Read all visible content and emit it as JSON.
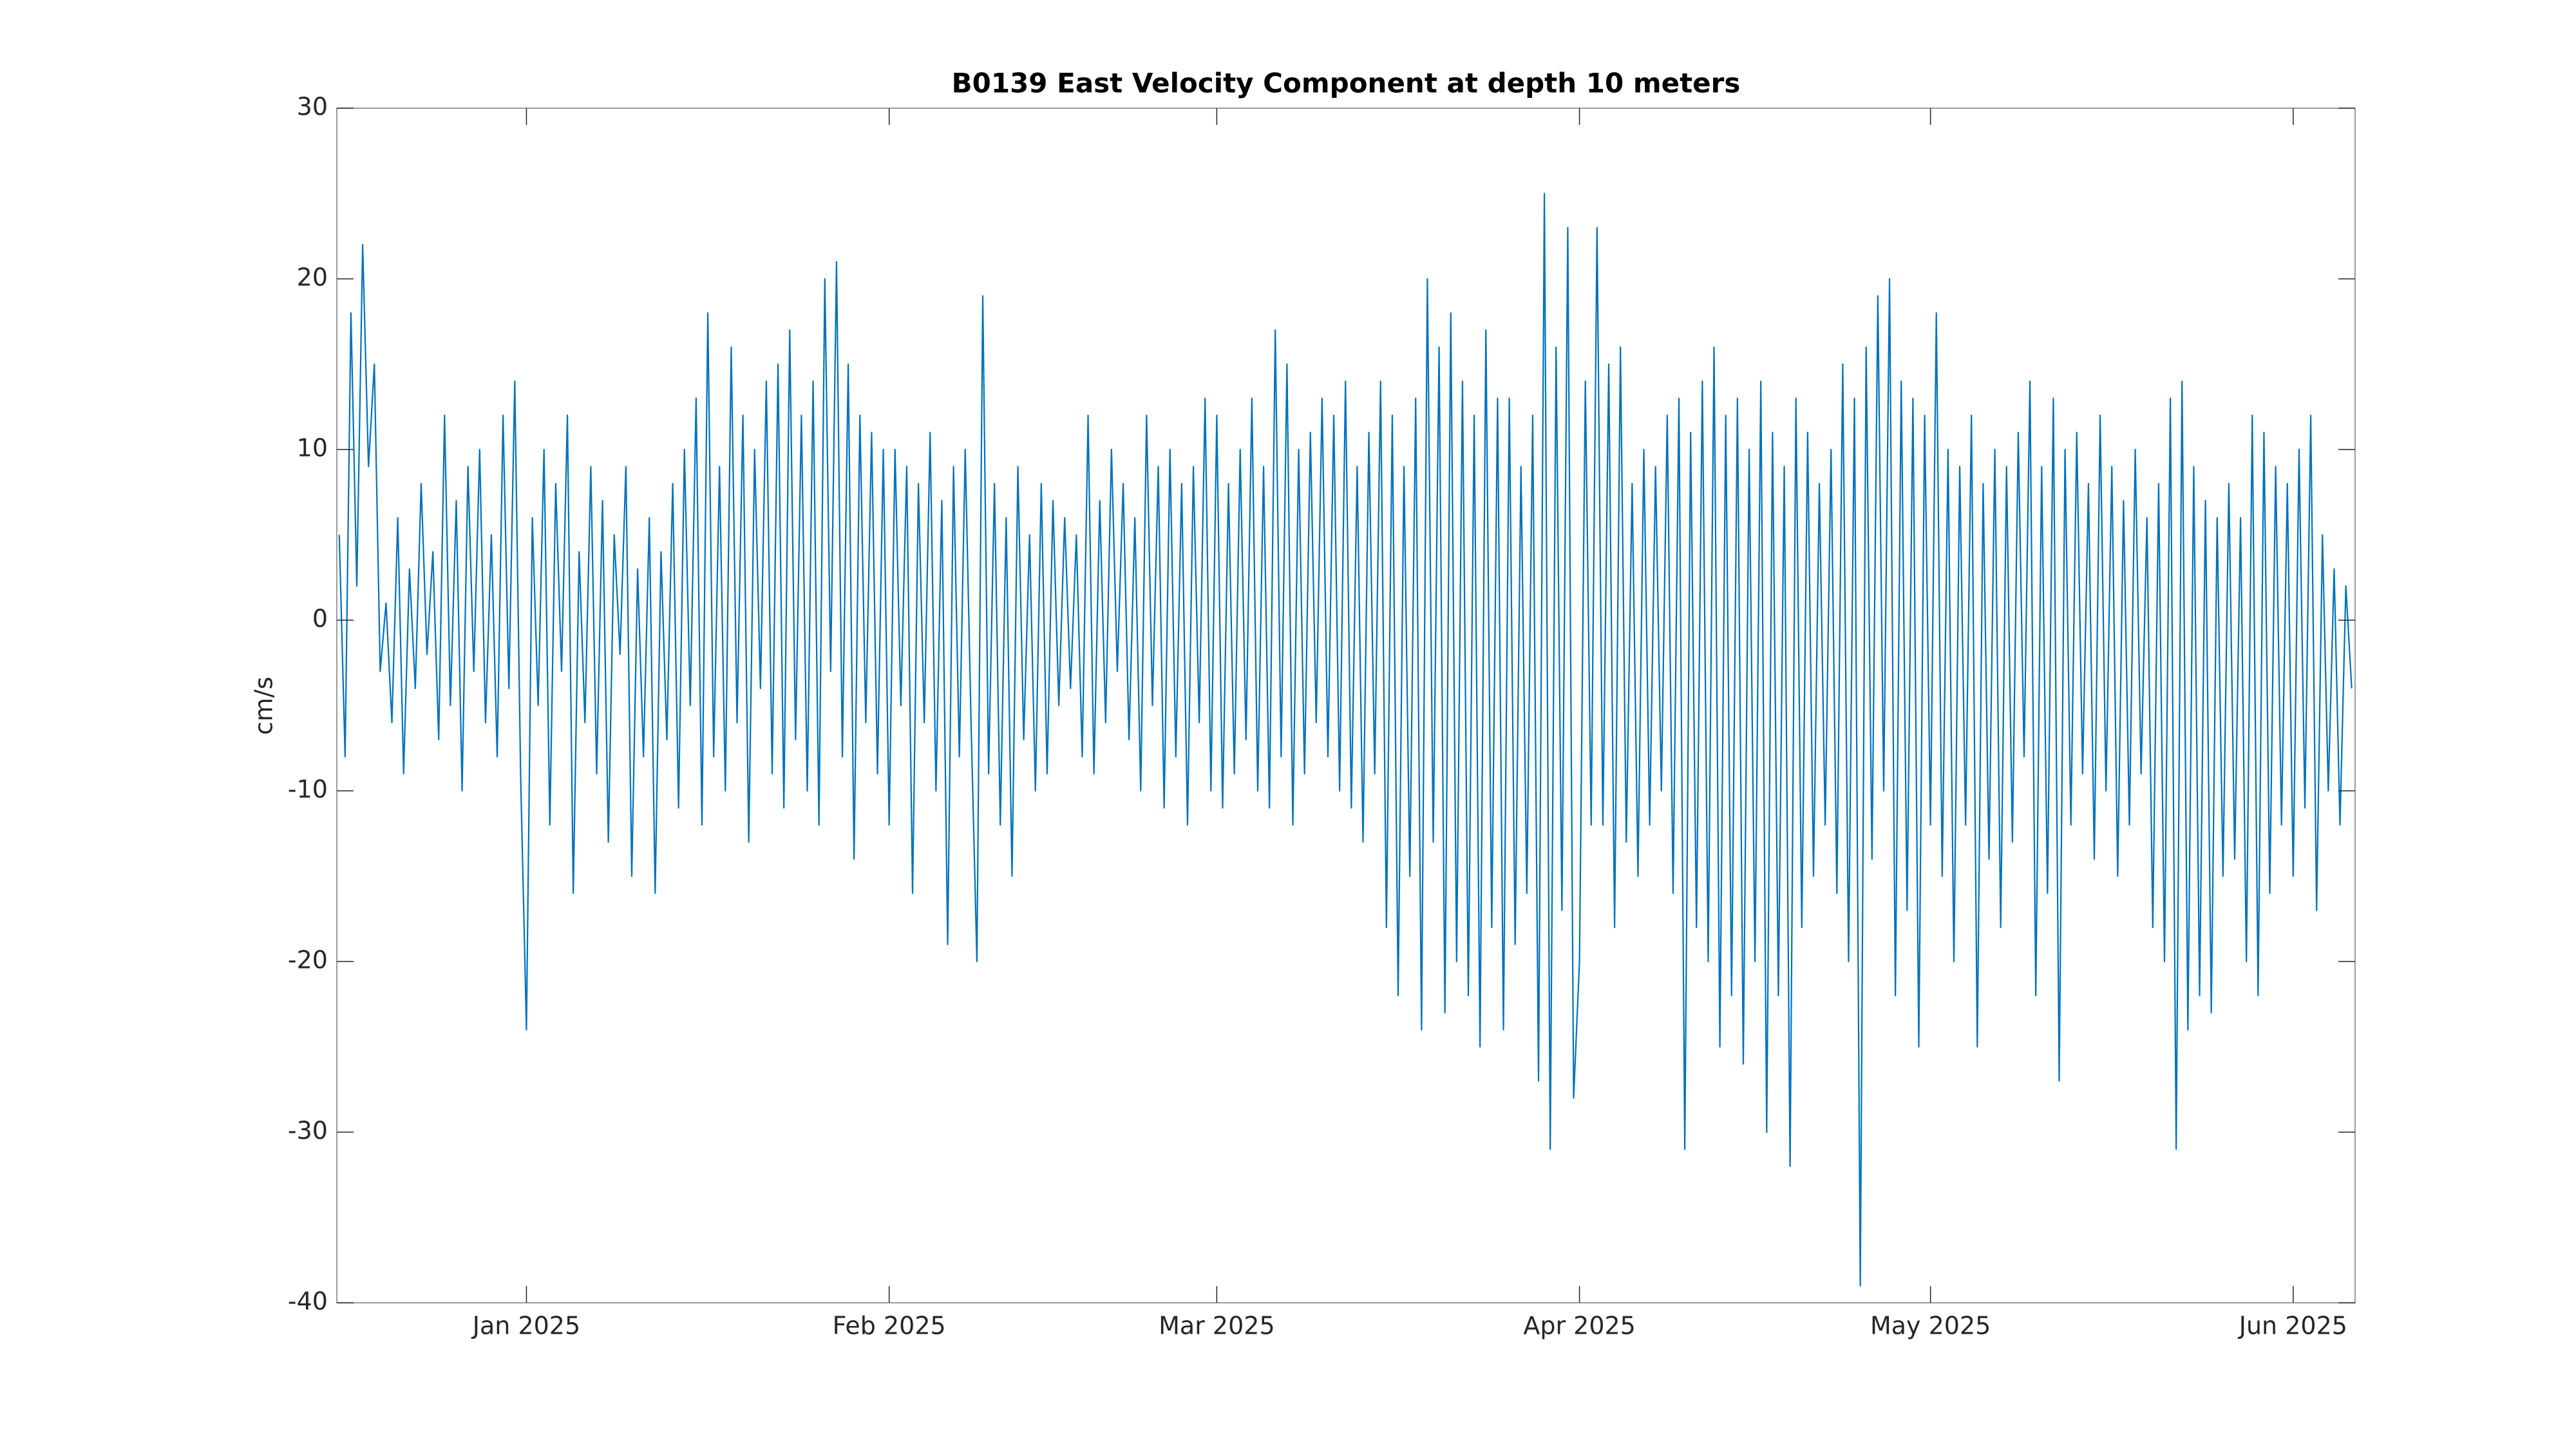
{
  "chart_data": {
    "type": "line",
    "title": "B0139 East Velocity Component at depth 10 meters",
    "y_label": "cm/s",
    "color": "#0072bd",
    "ylim": [
      -40,
      30
    ],
    "yticks": [
      -40,
      -30,
      -20,
      -10,
      0,
      10,
      20,
      30
    ],
    "xlim": [
      "2024-12-15T19:00",
      "2025-06-06T07:00"
    ],
    "xticks": [
      {
        "value": "2025-01-01T00:00",
        "label": "Jan 2025"
      },
      {
        "value": "2025-02-01T00:00",
        "label": "Feb 2025"
      },
      {
        "value": "2025-03-01T00:00",
        "label": "Mar 2025"
      },
      {
        "value": "2025-04-01T00:00",
        "label": "Apr 2025"
      },
      {
        "value": "2025-05-01T00:00",
        "label": "May 2025"
      },
      {
        "value": "2025-06-01T00:00",
        "label": "Jun 2025"
      }
    ],
    "x": [
      "2024-12-16T00:00",
      "2024-12-16T12:00",
      "2024-12-17T00:00",
      "2024-12-17T12:00",
      "2024-12-18T00:00",
      "2024-12-18T12:00",
      "2024-12-19T00:00",
      "2024-12-19T12:00",
      "2024-12-20T00:00",
      "2024-12-20T12:00",
      "2024-12-21T00:00",
      "2024-12-21T12:00",
      "2024-12-22T00:00",
      "2024-12-22T12:00",
      "2024-12-23T00:00",
      "2024-12-23T12:00",
      "2024-12-24T00:00",
      "2024-12-24T12:00",
      "2024-12-25T00:00",
      "2024-12-25T12:00",
      "2024-12-26T00:00",
      "2024-12-26T12:00",
      "2024-12-27T00:00",
      "2024-12-27T12:00",
      "2024-12-28T00:00",
      "2024-12-28T12:00",
      "2024-12-29T00:00",
      "2024-12-29T12:00",
      "2024-12-30T00:00",
      "2024-12-30T12:00",
      "2024-12-31T00:00",
      "2024-12-31T12:00",
      "2025-01-01T00:00",
      "2025-01-01T12:00",
      "2025-01-02T00:00",
      "2025-01-02T12:00",
      "2025-01-03T00:00",
      "2025-01-03T12:00",
      "2025-01-04T00:00",
      "2025-01-04T12:00",
      "2025-01-05T00:00",
      "2025-01-05T12:00",
      "2025-01-06T00:00",
      "2025-01-06T12:00",
      "2025-01-07T00:00",
      "2025-01-07T12:00",
      "2025-01-08T00:00",
      "2025-01-08T12:00",
      "2025-01-09T00:00",
      "2025-01-09T12:00",
      "2025-01-10T00:00",
      "2025-01-10T12:00",
      "2025-01-11T00:00",
      "2025-01-11T12:00",
      "2025-01-12T00:00",
      "2025-01-12T12:00",
      "2025-01-13T00:00",
      "2025-01-13T12:00",
      "2025-01-14T00:00",
      "2025-01-14T12:00",
      "2025-01-15T00:00",
      "2025-01-15T12:00",
      "2025-01-16T00:00",
      "2025-01-16T12:00",
      "2025-01-17T00:00",
      "2025-01-17T12:00",
      "2025-01-18T00:00",
      "2025-01-18T12:00",
      "2025-01-19T00:00",
      "2025-01-19T12:00",
      "2025-01-20T00:00",
      "2025-01-20T12:00",
      "2025-01-21T00:00",
      "2025-01-21T12:00",
      "2025-01-22T00:00",
      "2025-01-22T12:00",
      "2025-01-23T00:00",
      "2025-01-23T12:00",
      "2025-01-24T00:00",
      "2025-01-24T12:00",
      "2025-01-25T00:00",
      "2025-01-25T12:00",
      "2025-01-26T00:00",
      "2025-01-26T12:00",
      "2025-01-27T00:00",
      "2025-01-27T12:00",
      "2025-01-28T00:00",
      "2025-01-28T12:00",
      "2025-01-29T00:00",
      "2025-01-29T12:00",
      "2025-01-30T00:00",
      "2025-01-30T12:00",
      "2025-01-31T00:00",
      "2025-01-31T12:00",
      "2025-02-01T00:00",
      "2025-02-01T12:00",
      "2025-02-02T00:00",
      "2025-02-02T12:00",
      "2025-02-03T00:00",
      "2025-02-03T12:00",
      "2025-02-04T00:00",
      "2025-02-04T12:00",
      "2025-02-05T00:00",
      "2025-02-05T12:00",
      "2025-02-06T00:00",
      "2025-02-06T12:00",
      "2025-02-07T00:00",
      "2025-02-07T12:00",
      "2025-02-08T00:00",
      "2025-02-08T12:00",
      "2025-02-09T00:00",
      "2025-02-09T12:00",
      "2025-02-10T00:00",
      "2025-02-10T12:00",
      "2025-02-11T00:00",
      "2025-02-11T12:00",
      "2025-02-12T00:00",
      "2025-02-12T12:00",
      "2025-02-13T00:00",
      "2025-02-13T12:00",
      "2025-02-14T00:00",
      "2025-02-14T12:00",
      "2025-02-15T00:00",
      "2025-02-15T12:00",
      "2025-02-16T00:00",
      "2025-02-16T12:00",
      "2025-02-17T00:00",
      "2025-02-17T12:00",
      "2025-02-18T00:00",
      "2025-02-18T12:00",
      "2025-02-19T00:00",
      "2025-02-19T12:00",
      "2025-02-20T00:00",
      "2025-02-20T12:00",
      "2025-02-21T00:00",
      "2025-02-21T12:00",
      "2025-02-22T00:00",
      "2025-02-22T12:00",
      "2025-02-23T00:00",
      "2025-02-23T12:00",
      "2025-02-24T00:00",
      "2025-02-24T12:00",
      "2025-02-25T00:00",
      "2025-02-25T12:00",
      "2025-02-26T00:00",
      "2025-02-26T12:00",
      "2025-02-27T00:00",
      "2025-02-27T12:00",
      "2025-02-28T00:00",
      "2025-02-28T12:00",
      "2025-03-01T00:00",
      "2025-03-01T12:00",
      "2025-03-02T00:00",
      "2025-03-02T12:00",
      "2025-03-03T00:00",
      "2025-03-03T12:00",
      "2025-03-04T00:00",
      "2025-03-04T12:00",
      "2025-03-05T00:00",
      "2025-03-05T12:00",
      "2025-03-06T00:00",
      "2025-03-06T12:00",
      "2025-03-07T00:00",
      "2025-03-07T12:00",
      "2025-03-08T00:00",
      "2025-03-08T12:00",
      "2025-03-09T00:00",
      "2025-03-09T12:00",
      "2025-03-10T00:00",
      "2025-03-10T12:00",
      "2025-03-11T00:00",
      "2025-03-11T12:00",
      "2025-03-12T00:00",
      "2025-03-12T12:00",
      "2025-03-13T00:00",
      "2025-03-13T12:00",
      "2025-03-14T00:00",
      "2025-03-14T12:00",
      "2025-03-15T00:00",
      "2025-03-15T12:00",
      "2025-03-16T00:00",
      "2025-03-16T12:00",
      "2025-03-17T00:00",
      "2025-03-17T12:00",
      "2025-03-18T00:00",
      "2025-03-18T12:00",
      "2025-03-19T00:00",
      "2025-03-19T12:00",
      "2025-03-20T00:00",
      "2025-03-20T12:00",
      "2025-03-21T00:00",
      "2025-03-21T12:00",
      "2025-03-22T00:00",
      "2025-03-22T12:00",
      "2025-03-23T00:00",
      "2025-03-23T12:00",
      "2025-03-24T00:00",
      "2025-03-24T12:00",
      "2025-03-25T00:00",
      "2025-03-25T12:00",
      "2025-03-26T00:00",
      "2025-03-26T12:00",
      "2025-03-27T00:00",
      "2025-03-27T12:00",
      "2025-03-28T00:00",
      "2025-03-28T12:00",
      "2025-03-29T00:00",
      "2025-03-29T12:00",
      "2025-03-30T00:00",
      "2025-03-30T12:00",
      "2025-03-31T00:00",
      "2025-03-31T12:00",
      "2025-04-01T00:00",
      "2025-04-01T12:00",
      "2025-04-02T00:00",
      "2025-04-02T12:00",
      "2025-04-03T00:00",
      "2025-04-03T12:00",
      "2025-04-04T00:00",
      "2025-04-04T12:00",
      "2025-04-05T00:00",
      "2025-04-05T12:00",
      "2025-04-06T00:00",
      "2025-04-06T12:00",
      "2025-04-07T00:00",
      "2025-04-07T12:00",
      "2025-04-08T00:00",
      "2025-04-08T12:00",
      "2025-04-09T00:00",
      "2025-04-09T12:00",
      "2025-04-10T00:00",
      "2025-04-10T12:00",
      "2025-04-11T00:00",
      "2025-04-11T12:00",
      "2025-04-12T00:00",
      "2025-04-12T12:00",
      "2025-04-13T00:00",
      "2025-04-13T12:00",
      "2025-04-14T00:00",
      "2025-04-14T12:00",
      "2025-04-15T00:00",
      "2025-04-15T12:00",
      "2025-04-16T00:00",
      "2025-04-16T12:00",
      "2025-04-17T00:00",
      "2025-04-17T12:00",
      "2025-04-18T00:00",
      "2025-04-18T12:00",
      "2025-04-19T00:00",
      "2025-04-19T12:00",
      "2025-04-20T00:00",
      "2025-04-20T12:00",
      "2025-04-21T00:00",
      "2025-04-21T12:00",
      "2025-04-22T00:00",
      "2025-04-22T12:00",
      "2025-04-23T00:00",
      "2025-04-23T12:00",
      "2025-04-24T00:00",
      "2025-04-24T12:00",
      "2025-04-25T00:00",
      "2025-04-25T12:00",
      "2025-04-26T00:00",
      "2025-04-26T12:00",
      "2025-04-27T00:00",
      "2025-04-27T12:00",
      "2025-04-28T00:00",
      "2025-04-28T12:00",
      "2025-04-29T00:00",
      "2025-04-29T12:00",
      "2025-04-30T00:00",
      "2025-04-30T12:00",
      "2025-05-01T00:00",
      "2025-05-01T12:00",
      "2025-05-02T00:00",
      "2025-05-02T12:00",
      "2025-05-03T00:00",
      "2025-05-03T12:00",
      "2025-05-04T00:00",
      "2025-05-04T12:00",
      "2025-05-05T00:00",
      "2025-05-05T12:00",
      "2025-05-06T00:00",
      "2025-05-06T12:00",
      "2025-05-07T00:00",
      "2025-05-07T12:00",
      "2025-05-08T00:00",
      "2025-05-08T12:00",
      "2025-05-09T00:00",
      "2025-05-09T12:00",
      "2025-05-10T00:00",
      "2025-05-10T12:00",
      "2025-05-11T00:00",
      "2025-05-11T12:00",
      "2025-05-12T00:00",
      "2025-05-12T12:00",
      "2025-05-13T00:00",
      "2025-05-13T12:00",
      "2025-05-14T00:00",
      "2025-05-14T12:00",
      "2025-05-15T00:00",
      "2025-05-15T12:00",
      "2025-05-16T00:00",
      "2025-05-16T12:00",
      "2025-05-17T00:00",
      "2025-05-17T12:00",
      "2025-05-18T00:00",
      "2025-05-18T12:00",
      "2025-05-19T00:00",
      "2025-05-19T12:00",
      "2025-05-20T00:00",
      "2025-05-20T12:00",
      "2025-05-21T00:00",
      "2025-05-21T12:00",
      "2025-05-22T00:00",
      "2025-05-22T12:00",
      "2025-05-23T00:00",
      "2025-05-23T12:00",
      "2025-05-24T00:00",
      "2025-05-24T12:00",
      "2025-05-25T00:00",
      "2025-05-25T12:00",
      "2025-05-26T00:00",
      "2025-05-26T12:00",
      "2025-05-27T00:00",
      "2025-05-27T12:00",
      "2025-05-28T00:00",
      "2025-05-28T12:00",
      "2025-05-29T00:00",
      "2025-05-29T12:00",
      "2025-05-30T00:00",
      "2025-05-30T12:00",
      "2025-05-31T00:00",
      "2025-05-31T12:00",
      "2025-06-01T00:00",
      "2025-06-01T12:00",
      "2025-06-02T00:00",
      "2025-06-02T12:00",
      "2025-06-03T00:00",
      "2025-06-03T12:00",
      "2025-06-04T00:00",
      "2025-06-04T12:00",
      "2025-06-05T00:00",
      "2025-06-05T12:00",
      "2025-06-06T00:00"
    ],
    "values": [
      5,
      -8,
      18,
      2,
      22,
      9,
      15,
      -3,
      1,
      -6,
      6,
      -9,
      3,
      -4,
      8,
      -2,
      4,
      -7,
      12,
      -5,
      7,
      -10,
      9,
      -3,
      10,
      -6,
      5,
      -8,
      12,
      -4,
      14,
      -9,
      -24,
      6,
      -5,
      10,
      -12,
      8,
      -3,
      12,
      -16,
      4,
      -6,
      9,
      -9,
      7,
      -13,
      5,
      -2,
      9,
      -15,
      3,
      -8,
      6,
      -16,
      4,
      -7,
      8,
      -11,
      10,
      -5,
      13,
      -12,
      18,
      -8,
      9,
      -10,
      16,
      -6,
      12,
      -13,
      10,
      -4,
      14,
      -9,
      15,
      -11,
      17,
      -7,
      12,
      -10,
      14,
      -12,
      20,
      -3,
      21,
      -8,
      15,
      -14,
      12,
      -6,
      11,
      -9,
      10,
      -12,
      10,
      -5,
      9,
      -16,
      8,
      -6,
      11,
      -10,
      7,
      -19,
      9,
      -8,
      10,
      -6,
      -20,
      19,
      -9,
      8,
      -12,
      6,
      -15,
      9,
      -7,
      5,
      -10,
      8,
      -9,
      7,
      -5,
      6,
      -4,
      5,
      -8,
      12,
      -9,
      7,
      -6,
      10,
      -3,
      8,
      -7,
      6,
      -10,
      12,
      -5,
      9,
      -11,
      10,
      -8,
      8,
      -12,
      9,
      -6,
      13,
      -10,
      12,
      -11,
      8,
      -9,
      10,
      -7,
      13,
      -10,
      9,
      -11,
      17,
      -8,
      15,
      -12,
      10,
      -9,
      11,
      -6,
      13,
      -8,
      12,
      -10,
      14,
      -11,
      9,
      -13,
      11,
      -9,
      14,
      -18,
      12,
      -22,
      9,
      -15,
      13,
      -24,
      20,
      -13,
      16,
      -23,
      18,
      -20,
      14,
      -22,
      12,
      -25,
      17,
      -18,
      13,
      -24,
      13,
      -19,
      9,
      -16,
      12,
      -27,
      25,
      -31,
      16,
      -17,
      23,
      -28,
      -20,
      14,
      -12,
      23,
      -12,
      15,
      -18,
      16,
      -13,
      8,
      -15,
      10,
      -12,
      9,
      -10,
      12,
      -16,
      13,
      -31,
      11,
      -18,
      14,
      -20,
      16,
      -25,
      12,
      -22,
      13,
      -26,
      10,
      -20,
      14,
      -30,
      11,
      -22,
      9,
      -32,
      13,
      -18,
      11,
      -15,
      8,
      -12,
      10,
      -16,
      15,
      -20,
      13,
      -39,
      16,
      -14,
      19,
      -10,
      20,
      -22,
      14,
      -17,
      13,
      -25,
      12,
      -12,
      18,
      -15,
      10,
      -20,
      9,
      -12,
      12,
      -25,
      8,
      -14,
      10,
      -18,
      9,
      -13,
      11,
      -8,
      14,
      -22,
      9,
      -16,
      13,
      -27,
      10,
      -12,
      11,
      -9,
      8,
      -14,
      12,
      -10,
      9,
      -15,
      7,
      -12,
      10,
      -9,
      6,
      -18,
      8,
      -20,
      13,
      -31,
      14,
      -24,
      9,
      -22,
      7,
      -23,
      6,
      -15,
      8,
      -14,
      6,
      -20,
      12,
      -22,
      11,
      -16,
      9,
      -12,
      8,
      -15,
      10,
      -11,
      12,
      -17,
      5,
      -10,
      3,
      -12,
      2,
      -4
    ]
  }
}
